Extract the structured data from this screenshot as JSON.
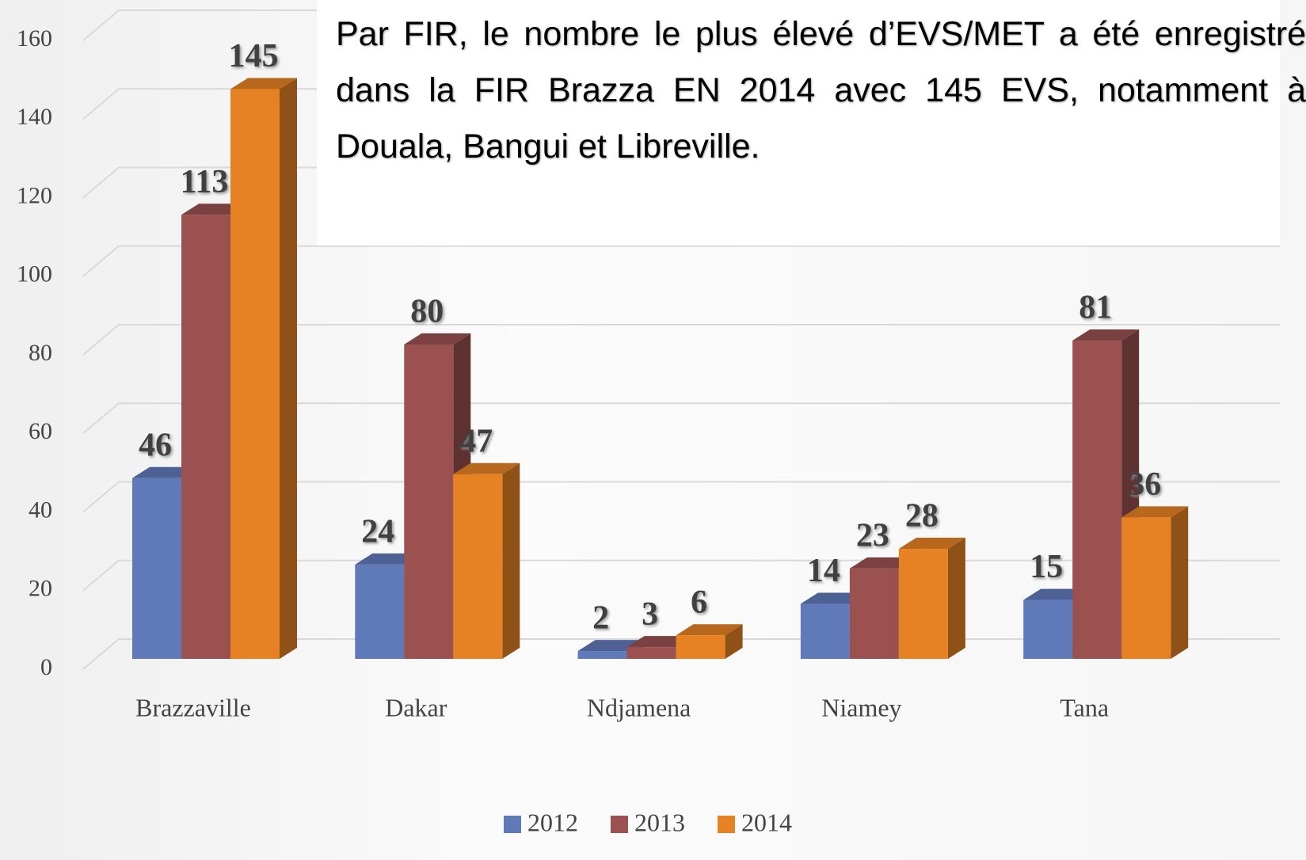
{
  "chart_data": {
    "type": "bar3d",
    "annotation": "Par FIR, le nombre le plus élevé d’EVS/MET a été enregistré dans la FIR Brazza EN 2014 avec 145 EVS, notamment à Douala, Bangui et Libreville.",
    "categories": [
      "Brazzaville",
      "Dakar",
      "Ndjamena",
      "Niamey",
      "Tana"
    ],
    "series": [
      {
        "name": "2012",
        "color": "#6079b9",
        "values": [
          46,
          24,
          2,
          14,
          15
        ]
      },
      {
        "name": "2013",
        "color": "#9a5150",
        "values": [
          113,
          80,
          3,
          23,
          81
        ]
      },
      {
        "name": "2014",
        "color": "#e68224",
        "values": [
          145,
          47,
          6,
          28,
          36
        ]
      }
    ],
    "ylim": [
      0,
      160
    ],
    "yticks": [
      0,
      20,
      40,
      60,
      80,
      100,
      120,
      140,
      160
    ],
    "grid": true,
    "legend": "bottom"
  }
}
